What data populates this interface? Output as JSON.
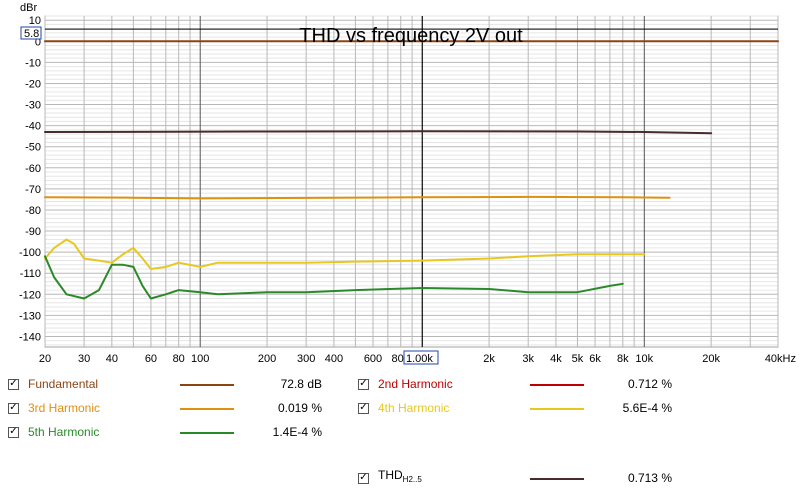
{
  "chart_data": {
    "type": "line",
    "title": "THD vs frequency 2V out",
    "ylabel": "dBr",
    "xunit": "kHz",
    "xscale": "log",
    "xlim": [
      20,
      40000
    ],
    "ylim": [
      -145,
      12
    ],
    "grid": true,
    "reference_level": "5.8",
    "cursor_x_label": "1.00k",
    "x_tick_labels": [
      {
        "v": 20,
        "t": "20"
      },
      {
        "v": 30,
        "t": "30"
      },
      {
        "v": 40,
        "t": "40"
      },
      {
        "v": 60,
        "t": "60"
      },
      {
        "v": 80,
        "t": "80"
      },
      {
        "v": 100,
        "t": "100"
      },
      {
        "v": 200,
        "t": "200"
      },
      {
        "v": 300,
        "t": "300"
      },
      {
        "v": 400,
        "t": "400"
      },
      {
        "v": 600,
        "t": "600"
      },
      {
        "v": 800,
        "t": "800"
      },
      {
        "v": 2000,
        "t": "2k"
      },
      {
        "v": 3000,
        "t": "3k"
      },
      {
        "v": 4000,
        "t": "4k"
      },
      {
        "v": 5000,
        "t": "5k"
      },
      {
        "v": 6000,
        "t": "6k"
      },
      {
        "v": 8000,
        "t": "8k"
      },
      {
        "v": 10000,
        "t": "10k"
      },
      {
        "v": 20000,
        "t": "20k"
      },
      {
        "v": 40000,
        "t": "40kHz"
      }
    ],
    "y_tick_labels": [
      "10",
      "0",
      "-10",
      "-20",
      "-30",
      "-40",
      "-50",
      "-60",
      "-70",
      "-80",
      "-90",
      "-100",
      "-110",
      "-120",
      "-130",
      "-140"
    ],
    "series": [
      {
        "name": "Fundamental",
        "color": "#8b4513",
        "value_text": "72.8 dB",
        "points": [
          [
            20,
            0
          ],
          [
            40000,
            0
          ]
        ]
      },
      {
        "name": "2nd Harmonic",
        "color": "#c00000",
        "value_text": "0.712 %",
        "points": []
      },
      {
        "name": "3rd Harmonic",
        "color": "#e09010",
        "value_text": "0.019 %",
        "points": [
          [
            20,
            -74
          ],
          [
            50,
            -74.2
          ],
          [
            100,
            -74.5
          ],
          [
            300,
            -74.3
          ],
          [
            1000,
            -74
          ],
          [
            3000,
            -73.8
          ],
          [
            8000,
            -74
          ],
          [
            13000,
            -74.2
          ]
        ]
      },
      {
        "name": "4th Harmonic",
        "color": "#e8c820",
        "value_text": "5.6E-4 %",
        "points": [
          [
            20,
            -103
          ],
          [
            22,
            -98
          ],
          [
            25,
            -94
          ],
          [
            27,
            -96
          ],
          [
            30,
            -103
          ],
          [
            35,
            -104
          ],
          [
            40,
            -105
          ],
          [
            45,
            -101
          ],
          [
            50,
            -98
          ],
          [
            55,
            -103
          ],
          [
            60,
            -108
          ],
          [
            70,
            -107
          ],
          [
            80,
            -105
          ],
          [
            100,
            -107
          ],
          [
            120,
            -105
          ],
          [
            200,
            -105
          ],
          [
            300,
            -105
          ],
          [
            500,
            -104.5
          ],
          [
            1000,
            -104
          ],
          [
            2000,
            -103
          ],
          [
            3000,
            -102
          ],
          [
            5000,
            -101
          ],
          [
            10000,
            -101
          ]
        ]
      },
      {
        "name": "5th Harmonic",
        "color": "#2a8a2a",
        "value_text": "1.4E-4 %",
        "points": [
          [
            20,
            -102
          ],
          [
            22,
            -112
          ],
          [
            25,
            -120
          ],
          [
            30,
            -122
          ],
          [
            35,
            -118
          ],
          [
            40,
            -106
          ],
          [
            45,
            -106
          ],
          [
            50,
            -107
          ],
          [
            55,
            -116
          ],
          [
            60,
            -122
          ],
          [
            70,
            -120
          ],
          [
            80,
            -118
          ],
          [
            100,
            -119
          ],
          [
            120,
            -120
          ],
          [
            200,
            -119
          ],
          [
            300,
            -119
          ],
          [
            500,
            -118
          ],
          [
            1000,
            -117
          ],
          [
            2000,
            -117.5
          ],
          [
            3000,
            -119
          ],
          [
            5000,
            -119
          ],
          [
            7000,
            -116
          ],
          [
            8000,
            -115
          ]
        ]
      },
      {
        "name": "THDH2..5",
        "color": "#4a2a2a",
        "value_text": "0.713 %",
        "points": [
          [
            20,
            -43
          ],
          [
            200,
            -42.8
          ],
          [
            1000,
            -42.7
          ],
          [
            5000,
            -42.8
          ],
          [
            10000,
            -43
          ],
          [
            20000,
            -43.6
          ]
        ]
      }
    ]
  },
  "legend": {
    "checkmark": "✓",
    "thd_main": "THD",
    "thd_sub": "H2..5"
  }
}
